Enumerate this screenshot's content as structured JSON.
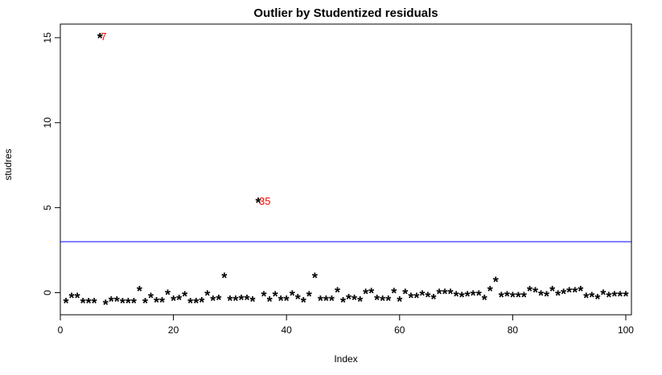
{
  "chart_data": {
    "type": "scatter",
    "title": "Outlier by Studentized residuals",
    "xlabel": "Index",
    "ylabel": "studres",
    "marker": "*",
    "xlim": [
      0,
      101
    ],
    "ylim": [
      -1.3,
      15.8
    ],
    "x_ticks": [
      0,
      20,
      40,
      60,
      80,
      100
    ],
    "y_ticks": [
      0,
      5,
      10,
      15
    ],
    "threshold_line": {
      "y": 3,
      "color": "#0000ff"
    },
    "point_color": "#000000",
    "annotation_color": "#ff0000",
    "annotations": [
      {
        "x": 7,
        "y": 15.1,
        "text": "7"
      },
      {
        "x": 35,
        "y": 5.4,
        "text": "35"
      }
    ],
    "x": [
      1,
      2,
      3,
      4,
      5,
      6,
      7,
      8,
      9,
      10,
      11,
      12,
      13,
      14,
      15,
      16,
      17,
      18,
      19,
      20,
      21,
      22,
      23,
      24,
      25,
      26,
      27,
      28,
      29,
      30,
      31,
      32,
      33,
      34,
      35,
      36,
      37,
      38,
      39,
      40,
      41,
      42,
      43,
      44,
      45,
      46,
      47,
      48,
      49,
      50,
      51,
      52,
      53,
      54,
      55,
      56,
      57,
      58,
      59,
      60,
      61,
      62,
      63,
      64,
      65,
      66,
      67,
      68,
      69,
      70,
      71,
      72,
      73,
      74,
      75,
      76,
      77,
      78,
      79,
      80,
      81,
      82,
      83,
      84,
      85,
      86,
      87,
      88,
      89,
      90,
      91,
      92,
      93,
      94,
      95,
      96,
      97,
      98,
      99,
      100
    ],
    "y": [
      -0.5,
      -0.2,
      -0.2,
      -0.5,
      -0.5,
      -0.5,
      15.1,
      -0.6,
      -0.4,
      -0.4,
      -0.5,
      -0.5,
      -0.5,
      0.2,
      -0.5,
      -0.2,
      -0.45,
      -0.45,
      0.0,
      -0.35,
      -0.3,
      -0.1,
      -0.5,
      -0.5,
      -0.45,
      -0.05,
      -0.35,
      -0.3,
      1.0,
      -0.35,
      -0.35,
      -0.3,
      -0.3,
      -0.4,
      5.4,
      -0.1,
      -0.4,
      -0.1,
      -0.35,
      -0.35,
      -0.05,
      -0.25,
      -0.45,
      -0.1,
      1.0,
      -0.35,
      -0.35,
      -0.35,
      0.15,
      -0.45,
      -0.25,
      -0.3,
      -0.4,
      0.05,
      0.1,
      -0.3,
      -0.35,
      -0.35,
      0.1,
      -0.4,
      0.05,
      -0.2,
      -0.2,
      -0.05,
      -0.15,
      -0.25,
      0.05,
      0.05,
      0.05,
      -0.1,
      -0.15,
      -0.1,
      -0.05,
      -0.05,
      -0.3,
      0.2,
      0.75,
      -0.15,
      -0.1,
      -0.15,
      -0.15,
      -0.15,
      0.2,
      0.15,
      -0.05,
      -0.1,
      0.2,
      -0.05,
      0.05,
      0.15,
      0.15,
      0.2,
      -0.2,
      -0.15,
      -0.25,
      0.0,
      -0.15,
      -0.1,
      -0.1,
      -0.1
    ]
  }
}
